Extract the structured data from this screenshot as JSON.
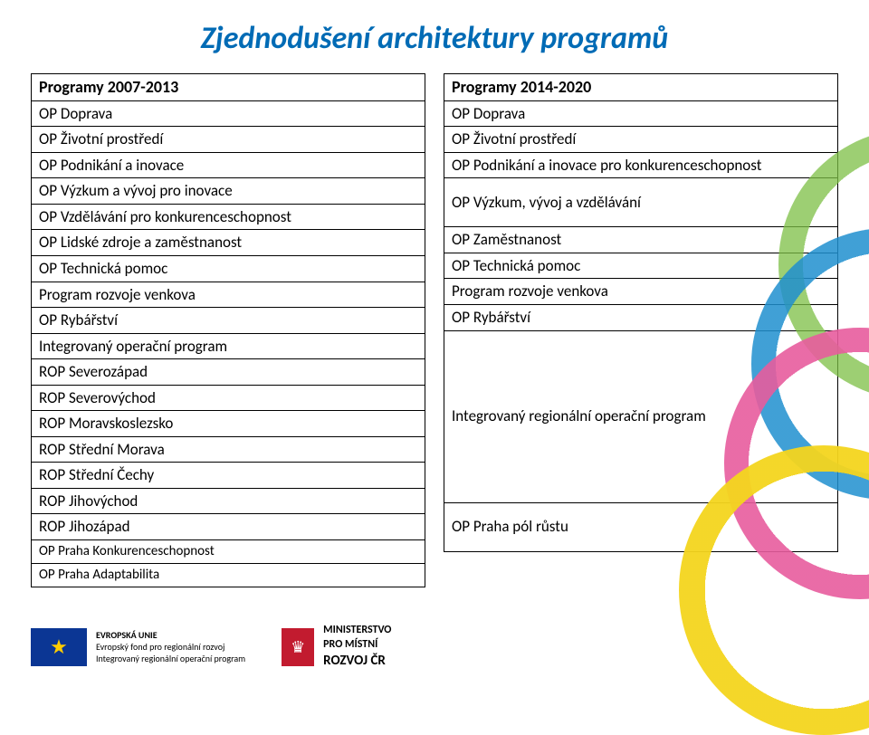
{
  "title": {
    "text": "Zjednodušení architektury programů",
    "color": "#006bb5"
  },
  "left_table": {
    "header": "Programy 2007-2013",
    "rows": [
      "OP Doprava",
      "OP Životní prostředí",
      "OP Podnikání a inovace",
      "OP Výzkum a vývoj pro inovace",
      "OP Vzdělávání pro konkurenceschopnost",
      "OP Lidské zdroje a zaměstnanost",
      "OP Technická pomoc",
      "Program rozvoje venkova",
      "OP Rybářství",
      "Integrovaný operační program",
      "ROP Severozápad",
      "ROP Severovýchod",
      "ROP Moravskoslezsko",
      "ROP Střední Morava",
      "ROP Střední Čechy",
      "ROP Jihovýchod",
      "ROP Jihozápad",
      "OP Praha Konkurenceschopnost",
      "OP Praha Adaptabilita"
    ]
  },
  "right_table": {
    "header": "Programy 2014-2020",
    "rows": [
      {
        "text": "OP Doprava"
      },
      {
        "text": "OP Životní prostředí"
      },
      {
        "text": "OP Podnikání a inovace pro konkurenceschopnost"
      },
      {
        "text": "OP Výzkum, vývoj a vzdělávání",
        "class": "double"
      },
      {
        "text": "OP Zaměstnanost"
      },
      {
        "text": "OP Technická pomoc"
      },
      {
        "text": "Program rozvoje venkova"
      },
      {
        "text": "OP Rybářství"
      },
      {
        "text": "Integrovaný regionální operační program",
        "class": "tall"
      },
      {
        "text": "OP Praha pól růstu",
        "class": "double"
      }
    ]
  },
  "footer": {
    "eu_line1": "EVROPSKÁ UNIE",
    "eu_line2": "Evropský fond pro regionální rozvoj",
    "eu_line3": "Integrovaný regionální operační program",
    "mmr_line1": "MINISTERSTVO",
    "mmr_line2": "PRO MÍSTNÍ",
    "mmr_line3": "ROZVOJ ČR"
  },
  "colors": {
    "title": "#006bb5",
    "border": "#000000",
    "arc_yellow": "#f4d51e",
    "arc_pink": "#e75c9d",
    "arc_blue": "#1f8fcf",
    "arc_green": "#7cbf44",
    "eu_flag_bg": "#0b3694",
    "lion_bg": "#c21b2f"
  }
}
